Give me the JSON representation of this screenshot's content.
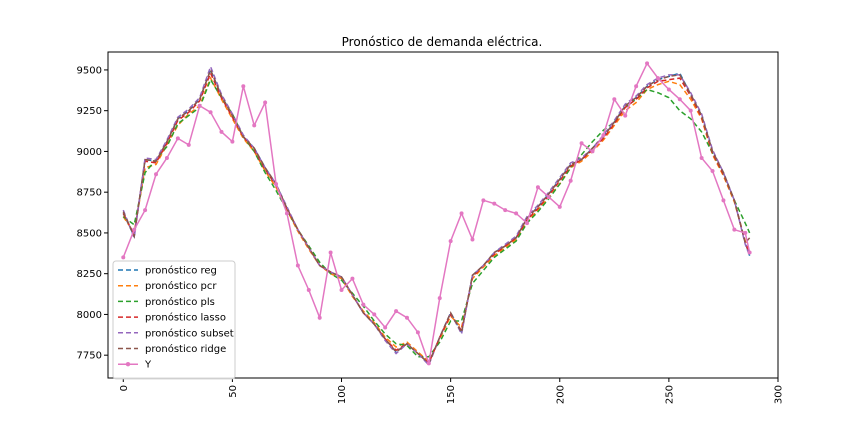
{
  "chart_data": {
    "type": "line",
    "title": "Pronóstico de demanda eléctrica.",
    "xlabel": "",
    "ylabel": "",
    "xlim": [
      -7,
      300
    ],
    "ylim": [
      7610,
      9610
    ],
    "x_ticks": [
      0,
      50,
      100,
      150,
      200,
      250,
      300
    ],
    "y_ticks": [
      7750,
      8000,
      8250,
      8500,
      8750,
      9000,
      9250,
      9500
    ],
    "legend_position": "lower-left",
    "grid": false,
    "x_tick_rotation": 90,
    "x": [
      0,
      5,
      10,
      15,
      20,
      25,
      30,
      35,
      40,
      45,
      50,
      55,
      60,
      65,
      70,
      75,
      80,
      85,
      90,
      95,
      100,
      105,
      110,
      115,
      120,
      125,
      130,
      135,
      140,
      145,
      150,
      155,
      160,
      165,
      170,
      175,
      180,
      185,
      190,
      195,
      200,
      205,
      210,
      215,
      220,
      225,
      230,
      235,
      240,
      245,
      250,
      255,
      260,
      265,
      270,
      275,
      280,
      285,
      287
    ],
    "series": [
      {
        "name": "pronóstico reg",
        "color": "#1f77b4",
        "dash": "dashed",
        "values": [
          8620,
          8480,
          8950,
          8940,
          9060,
          9200,
          9250,
          9320,
          9500,
          9340,
          9220,
          9090,
          9020,
          8900,
          8800,
          8650,
          8520,
          8410,
          8300,
          8260,
          8230,
          8120,
          8010,
          7940,
          7850,
          7770,
          7820,
          7760,
          7700,
          7860,
          8010,
          7890,
          8240,
          8300,
          8380,
          8420,
          8470,
          8590,
          8660,
          8740,
          8830,
          8920,
          8950,
          9020,
          9090,
          9180,
          9280,
          9330,
          9400,
          9440,
          9460,
          9480,
          9350,
          9220,
          9000,
          8870,
          8700,
          8440,
          8360
        ]
      },
      {
        "name": "pronóstico pcr",
        "color": "#ff7f0e",
        "dash": "dashed",
        "values": [
          8600,
          8500,
          8900,
          8920,
          9040,
          9160,
          9230,
          9280,
          9450,
          9320,
          9200,
          9080,
          9000,
          8880,
          8780,
          8640,
          8510,
          8400,
          8300,
          8250,
          8220,
          8110,
          8020,
          7950,
          7860,
          7800,
          7830,
          7770,
          7710,
          7850,
          7990,
          7920,
          8220,
          8290,
          8360,
          8410,
          8460,
          8570,
          8640,
          8720,
          8800,
          8900,
          8940,
          9000,
          9070,
          9160,
          9250,
          9300,
          9380,
          9410,
          9430,
          9410,
          9320,
          9200,
          8980,
          8850,
          8690,
          8450,
          8380
        ]
      },
      {
        "name": "pronóstico pls",
        "color": "#2ca02c",
        "dash": "dashed",
        "values": [
          8600,
          8550,
          8870,
          8950,
          9030,
          9170,
          9220,
          9270,
          9440,
          9330,
          9230,
          9090,
          9000,
          8870,
          8760,
          8640,
          8520,
          8420,
          8320,
          8250,
          8210,
          8130,
          8050,
          7960,
          7880,
          7820,
          7810,
          7740,
          7740,
          7830,
          7960,
          7960,
          8190,
          8270,
          8350,
          8400,
          8450,
          8560,
          8630,
          8710,
          8800,
          8900,
          8980,
          9060,
          9130,
          9180,
          9270,
          9320,
          9380,
          9360,
          9330,
          9250,
          9200,
          9120,
          8990,
          8860,
          8700,
          8560,
          8500
        ]
      },
      {
        "name": "pronóstico lasso",
        "color": "#d62728",
        "dash": "dashed",
        "values": [
          8620,
          8490,
          8940,
          8930,
          9050,
          9190,
          9240,
          9310,
          9480,
          9330,
          9210,
          9090,
          9010,
          8890,
          8790,
          8650,
          8520,
          8410,
          8300,
          8260,
          8230,
          8120,
          8010,
          7940,
          7850,
          7780,
          7820,
          7760,
          7700,
          7860,
          8000,
          7900,
          8230,
          8300,
          8370,
          8420,
          8470,
          8580,
          8650,
          8730,
          8820,
          8910,
          8950,
          9010,
          9080,
          9170,
          9270,
          9320,
          9390,
          9430,
          9440,
          9450,
          9340,
          9210,
          8990,
          8860,
          8700,
          8440,
          8370
        ]
      },
      {
        "name": "pronóstico subset",
        "color": "#9467bd",
        "dash": "dashed",
        "values": [
          8640,
          8470,
          8960,
          8950,
          9070,
          9210,
          9260,
          9330,
          9520,
          9350,
          9230,
          9100,
          9020,
          8900,
          8800,
          8660,
          8520,
          8410,
          8300,
          8260,
          8230,
          8120,
          8010,
          7940,
          7840,
          7760,
          7820,
          7760,
          7690,
          7860,
          8010,
          7880,
          8240,
          8300,
          8380,
          8430,
          8480,
          8600,
          8670,
          8750,
          8840,
          8930,
          8960,
          9020,
          9100,
          9190,
          9290,
          9340,
          9410,
          9450,
          9470,
          9470,
          9360,
          9230,
          9010,
          8870,
          8700,
          8430,
          8360
        ]
      },
      {
        "name": "pronóstico ridge",
        "color": "#8c564b",
        "dash": "dashed",
        "values": [
          8630,
          8480,
          8950,
          8940,
          9060,
          9200,
          9250,
          9320,
          9500,
          9340,
          9220,
          9090,
          9020,
          8900,
          8800,
          8650,
          8520,
          8410,
          8300,
          8260,
          8230,
          8120,
          8010,
          7940,
          7850,
          7770,
          7820,
          7760,
          7700,
          7860,
          8010,
          7890,
          8240,
          8300,
          8380,
          8420,
          8470,
          8590,
          8660,
          8740,
          8830,
          8920,
          8950,
          9020,
          9090,
          9180,
          9280,
          9330,
          9400,
          9440,
          9460,
          9470,
          9350,
          9220,
          9000,
          8870,
          8700,
          8440,
          8470
        ]
      },
      {
        "name": "Y",
        "color": "#e377c2",
        "dash": "solid",
        "marker": "dot",
        "values": [
          8350,
          8520,
          8640,
          8860,
          8960,
          9080,
          9040,
          9280,
          9240,
          9120,
          9060,
          9400,
          9160,
          9300,
          8800,
          8620,
          8300,
          8150,
          7980,
          8380,
          8150,
          8220,
          8060,
          8000,
          7920,
          8020,
          7980,
          7890,
          7700,
          8100,
          8450,
          8620,
          8460,
          8700,
          8680,
          8640,
          8620,
          8560,
          8780,
          8720,
          8660,
          8820,
          9050,
          9000,
          9100,
          9320,
          9220,
          9400,
          9540,
          9450,
          9380,
          9320,
          9250,
          8960,
          8880,
          8700,
          8520,
          8500,
          8380
        ]
      }
    ]
  }
}
